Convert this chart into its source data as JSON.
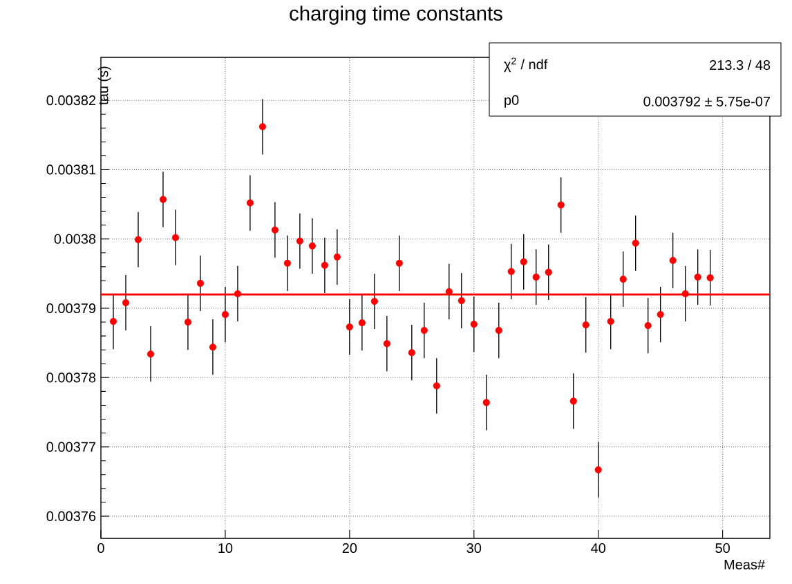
{
  "chart_data": {
    "type": "scatter",
    "title": "charging time constants",
    "xlabel": "Meas#",
    "ylabel": "tau (s)",
    "x": [
      1,
      2,
      3,
      4,
      5,
      6,
      7,
      8,
      9,
      10,
      11,
      12,
      13,
      14,
      15,
      16,
      17,
      18,
      19,
      20,
      21,
      22,
      23,
      24,
      25,
      26,
      27,
      28,
      29,
      30,
      31,
      32,
      33,
      34,
      35,
      36,
      37,
      38,
      39,
      40,
      41,
      42,
      43,
      44,
      45,
      46,
      47,
      48,
      49
    ],
    "series": [
      {
        "color": "#ff0000",
        "marker": "circle",
        "values": [
          0.0037881,
          0.0037908,
          0.0037999,
          0.0037834,
          0.0038057,
          0.0038002,
          0.003788,
          0.0037936,
          0.0037844,
          0.0037891,
          0.0037921,
          0.0038052,
          0.0038162,
          0.0038013,
          0.0037965,
          0.0037997,
          0.003799,
          0.0037962,
          0.0037974,
          0.0037873,
          0.0037879,
          0.003791,
          0.0037849,
          0.0037965,
          0.0037836,
          0.0037868,
          0.0037788,
          0.0037924,
          0.0037911,
          0.0037877,
          0.0037764,
          0.0037868,
          0.0037953,
          0.0037967,
          0.0037945,
          0.0037952,
          0.0038049,
          0.0037766,
          0.0037876,
          0.0037667,
          0.0037881,
          0.0037942,
          0.0037994,
          0.0037875,
          0.0037891,
          0.0037969,
          0.0037921,
          0.0037945,
          0.0037944
        ],
        "errors": [
          4e-06,
          4e-06,
          4e-06,
          4e-06,
          4e-06,
          4e-06,
          4e-06,
          4e-06,
          4e-06,
          4e-06,
          4e-06,
          4e-06,
          4e-06,
          4e-06,
          4e-06,
          4e-06,
          4e-06,
          4e-06,
          4e-06,
          4e-06,
          4e-06,
          4e-06,
          4e-06,
          4e-06,
          4e-06,
          4e-06,
          4e-06,
          4e-06,
          4e-06,
          4e-06,
          4e-06,
          4e-06,
          4e-06,
          4e-06,
          4e-06,
          4e-06,
          4e-06,
          4e-06,
          4e-06,
          4e-06,
          4e-06,
          4e-06,
          4e-06,
          4e-06,
          4e-06,
          4e-06,
          4e-06,
          4e-06,
          4e-06
        ]
      },
      {
        "type": "line",
        "color": "#ff0000",
        "marker": "none",
        "x": [
          0,
          53.8
        ],
        "values": [
          0.003792,
          0.003792
        ]
      }
    ],
    "xlim": [
      0,
      53.8
    ],
    "ylim": [
      0.0037568,
      0.0038262
    ],
    "xticks": [
      0,
      10,
      20,
      30,
      40,
      50
    ],
    "yticks": [
      0.00376,
      0.00377,
      0.00378,
      0.00379,
      0.0038,
      0.00381,
      0.00382
    ],
    "grid": true,
    "annotations": [
      "χ$^{2}$ / ndf",
      "213.3 / 48",
      "p0",
      "0.003792 ± 5.75e-07"
    ]
  }
}
